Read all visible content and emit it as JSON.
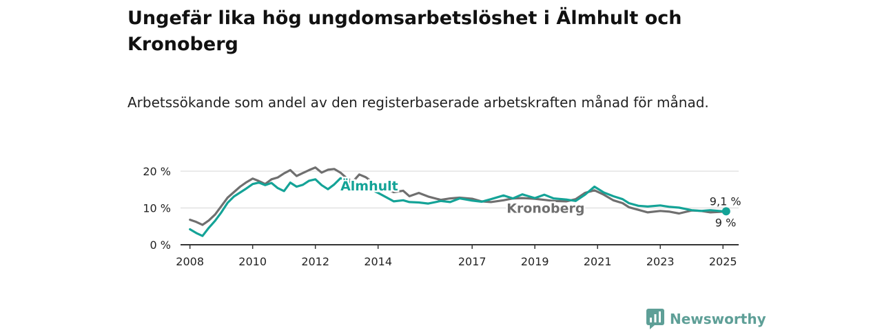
{
  "title": "Ungefär lika hög ungdomsarbetslöshet i Älmhult och Kronoberg",
  "subtitle": "Arbetssökande som andel av den registerbaserade arbetskraften månad för månad.",
  "brand": {
    "name": "Newsworthy",
    "icon": "newsworthy-bar-chart-icon"
  },
  "colors": {
    "almhult": "#14a397",
    "kronoberg": "#6f6f6f",
    "grid": "#dddddd",
    "axis": "#333333",
    "brand": "#5e9f97"
  },
  "chart_data": {
    "type": "line",
    "x_unit": "year",
    "xlim": [
      2007.7,
      2025.5
    ],
    "ylim": [
      0,
      20
    ],
    "y_ticks": [
      0,
      10,
      20
    ],
    "y_tick_labels": [
      "0 %",
      "10 %",
      "20 %"
    ],
    "x_ticks": [
      2008,
      2010,
      2012,
      2014,
      2017,
      2019,
      2021,
      2023,
      2025
    ],
    "x_tick_labels": [
      "2008",
      "2010",
      "2012",
      "2014",
      "2017",
      "2019",
      "2021",
      "2023",
      "2025"
    ],
    "grid": true,
    "series": [
      {
        "name": "Kronoberg",
        "color": "#6f6f6f",
        "end_label": "9 %",
        "x": [
          2008.0,
          2008.2,
          2008.4,
          2008.6,
          2008.8,
          2009.0,
          2009.2,
          2009.4,
          2009.6,
          2009.8,
          2010.0,
          2010.2,
          2010.4,
          2010.6,
          2010.8,
          2011.0,
          2011.2,
          2011.4,
          2011.6,
          2011.8,
          2012.0,
          2012.2,
          2012.4,
          2012.6,
          2012.8,
          2013.0,
          2013.2,
          2013.4,
          2013.6,
          2013.8,
          2014.0,
          2014.2,
          2014.5,
          2014.8,
          2015.0,
          2015.3,
          2015.6,
          2016.0,
          2016.3,
          2016.6,
          2017.0,
          2017.3,
          2017.6,
          2018.0,
          2018.3,
          2018.6,
          2019.0,
          2019.3,
          2019.6,
          2020.0,
          2020.3,
          2020.6,
          2020.9,
          2021.2,
          2021.5,
          2021.8,
          2022.0,
          2022.3,
          2022.6,
          2023.0,
          2023.3,
          2023.6,
          2024.0,
          2024.3,
          2024.6,
          2025.0,
          2025.1
        ],
        "y": [
          6.8,
          6.2,
          5.4,
          6.6,
          8.2,
          10.5,
          12.8,
          14.3,
          15.8,
          17.0,
          18.0,
          17.3,
          16.5,
          17.8,
          18.3,
          19.4,
          20.3,
          18.7,
          19.5,
          20.3,
          21.0,
          19.6,
          20.4,
          20.6,
          19.6,
          18.1,
          17.2,
          19.1,
          18.4,
          17.2,
          16.1,
          15.2,
          14.3,
          14.7,
          13.2,
          14.1,
          13.1,
          12.2,
          12.6,
          12.8,
          12.5,
          11.8,
          11.6,
          12.1,
          12.6,
          12.7,
          12.5,
          12.2,
          11.9,
          11.8,
          12.4,
          14.1,
          14.8,
          13.6,
          12.1,
          11.3,
          10.2,
          9.5,
          8.8,
          9.2,
          9.0,
          8.5,
          9.3,
          9.2,
          8.8,
          9.0,
          9.0
        ]
      },
      {
        "name": "Älmhult",
        "color": "#14a397",
        "end_label": "9,1 %",
        "x": [
          2008.0,
          2008.2,
          2008.4,
          2008.6,
          2008.8,
          2009.0,
          2009.2,
          2009.4,
          2009.6,
          2009.8,
          2010.0,
          2010.2,
          2010.4,
          2010.6,
          2010.8,
          2011.0,
          2011.2,
          2011.4,
          2011.6,
          2011.8,
          2012.0,
          2012.2,
          2012.4,
          2012.6,
          2012.8,
          2013.0,
          2013.2,
          2013.4,
          2013.6,
          2013.8,
          2014.0,
          2014.2,
          2014.5,
          2014.8,
          2015.0,
          2015.3,
          2015.6,
          2016.0,
          2016.3,
          2016.6,
          2017.0,
          2017.3,
          2017.6,
          2018.0,
          2018.3,
          2018.6,
          2019.0,
          2019.3,
          2019.6,
          2020.0,
          2020.3,
          2020.6,
          2020.9,
          2021.2,
          2021.5,
          2021.8,
          2022.0,
          2022.3,
          2022.6,
          2023.0,
          2023.3,
          2023.6,
          2024.0,
          2024.3,
          2024.6,
          2025.0,
          2025.1
        ],
        "y": [
          4.2,
          3.2,
          2.4,
          4.6,
          6.5,
          8.8,
          11.4,
          13.1,
          14.2,
          15.3,
          16.5,
          16.9,
          16.2,
          16.8,
          15.4,
          14.6,
          16.9,
          15.8,
          16.3,
          17.4,
          17.8,
          16.2,
          15.1,
          16.4,
          18.1,
          17.6,
          16.5,
          15.7,
          15.2,
          14.9,
          14.1,
          13.2,
          11.8,
          12.1,
          11.6,
          11.5,
          11.2,
          11.9,
          11.6,
          12.6,
          12.0,
          11.7,
          12.4,
          13.4,
          12.6,
          13.7,
          12.7,
          13.6,
          12.6,
          12.3,
          11.9,
          13.6,
          15.8,
          14.2,
          13.2,
          12.4,
          11.3,
          10.6,
          10.4,
          10.7,
          10.3,
          10.1,
          9.4,
          9.2,
          9.4,
          9.1,
          9.1
        ]
      }
    ],
    "labels": [
      {
        "text": "Älmhult",
        "series": "Älmhult",
        "x": 2012.8,
        "y": 15.9
      },
      {
        "text": "Kronoberg",
        "series": "Kronoberg",
        "x": 2018.1,
        "y": 9.8
      }
    ]
  }
}
